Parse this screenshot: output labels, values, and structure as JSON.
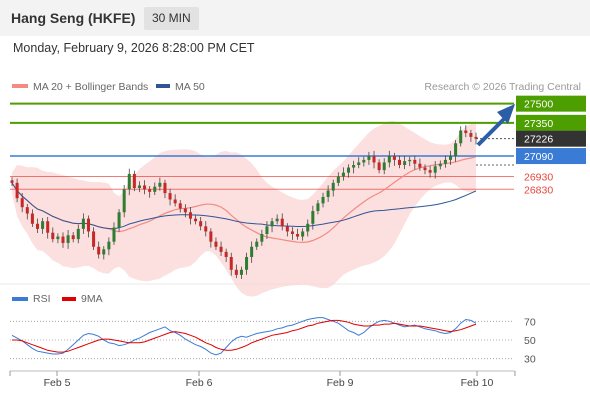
{
  "header": {
    "title": "Hang Seng (HKFE)",
    "interval": "30 MIN",
    "datetime": "Monday, February 9, 2026 8:28:00 PM CET"
  },
  "colors": {
    "ma20": "#f28b82",
    "ma50": "#2f5597",
    "resistance": "#4d9e00",
    "pivot": "#3a7bd5",
    "support": "#e8453c",
    "current": "#333333",
    "candle_up": "#2e7d32",
    "candle_down": "#c62828",
    "arrow": "#2b5ea7",
    "rsi": "#3a7bd5",
    "rsi_ma": "#e00000",
    "band_fill": "#fbd4d4"
  },
  "legend": {
    "ma20_label": "MA 20 + Bollinger Bands",
    "ma50_label": "MA 50",
    "credit": "Research © 2026 Trading Central"
  },
  "rsi_legend": {
    "rsi_label": "RSI",
    "ma_label": "9MA"
  },
  "chart_data": {
    "type": "candlestick",
    "x_labels": [
      "Feb 5",
      "Feb 6",
      "Feb 9",
      "Feb 10"
    ],
    "levels": [
      {
        "value": 27500,
        "label": "27500",
        "kind": "resistance"
      },
      {
        "value": 27350,
        "label": "27350",
        "kind": "resistance"
      },
      {
        "value": 27226,
        "label": "27226",
        "kind": "current"
      },
      {
        "value": 27090,
        "label": "27090",
        "kind": "pivot"
      },
      {
        "value": 26930,
        "label": "26930",
        "kind": "support"
      },
      {
        "value": 26830,
        "label": "26830",
        "kind": "support"
      }
    ],
    "ohlc_close": [
      26880,
      26760,
      26690,
      26640,
      26560,
      26520,
      26580,
      26490,
      26440,
      26460,
      26410,
      26470,
      26440,
      26520,
      26600,
      26500,
      26380,
      26320,
      26360,
      26420,
      26530,
      26650,
      26830,
      26950,
      26840,
      26860,
      26830,
      26810,
      26850,
      26880,
      26800,
      26750,
      26720,
      26680,
      26650,
      26600,
      26580,
      26540,
      26500,
      26420,
      26380,
      26340,
      26300,
      26200,
      26160,
      26200,
      26300,
      26380,
      26420,
      26480,
      26540,
      26580,
      26600,
      26540,
      26500,
      26480,
      26460,
      26500,
      26560,
      26660,
      26720,
      26770,
      26820,
      26880,
      26930,
      26960,
      27000,
      27020,
      27040,
      27060,
      27090,
      27040,
      26980,
      27040,
      27090,
      27060,
      27020,
      27050,
      27060,
      27030,
      27000,
      26980,
      26960,
      27010,
      27030,
      27060,
      27090,
      27190,
      27290,
      27270,
      27240,
      27226
    ],
    "yrange": [
      26120,
      27560
    ],
    "rsi": {
      "values": [
        55,
        52,
        49,
        45,
        41,
        38,
        37,
        36,
        35,
        35,
        36,
        40,
        45,
        50,
        55,
        57,
        56,
        54,
        50,
        47,
        46,
        44,
        45,
        47,
        50,
        52,
        55,
        58,
        60,
        62,
        64,
        60,
        58,
        55,
        51,
        48,
        45,
        43,
        40,
        36,
        34,
        36,
        42,
        48,
        52,
        54,
        53,
        55,
        57,
        58,
        59,
        60,
        62,
        63,
        65,
        66,
        68,
        70,
        72,
        73,
        74,
        74,
        72,
        70,
        68,
        64,
        60,
        58,
        55,
        58,
        63,
        67,
        70,
        71,
        70,
        68,
        66,
        64,
        65,
        66,
        64,
        62,
        61,
        60,
        58,
        57,
        58,
        62,
        68,
        72,
        71,
        68
      ],
      "ma": [
        50,
        50,
        49,
        47,
        45,
        43,
        41,
        39,
        38,
        37,
        37,
        38,
        40,
        42,
        44,
        46,
        48,
        50,
        51,
        51,
        50,
        49,
        48,
        47,
        47,
        47,
        48,
        50,
        52,
        54,
        56,
        58,
        59,
        58,
        57,
        55,
        53,
        50,
        47,
        45,
        42,
        40,
        39,
        39,
        40,
        42,
        44,
        47,
        49,
        51,
        53,
        55,
        56,
        57,
        58,
        60,
        61,
        63,
        65,
        66,
        68,
        69,
        70,
        71,
        71,
        70,
        69,
        67,
        66,
        65,
        65,
        66,
        66,
        67,
        67,
        68,
        67,
        66,
        65,
        65,
        65,
        64,
        63,
        62,
        61,
        60,
        59,
        60,
        61,
        63,
        65,
        67
      ],
      "ticks": [
        70,
        50,
        30
      ],
      "ylim": [
        20,
        80
      ]
    }
  }
}
